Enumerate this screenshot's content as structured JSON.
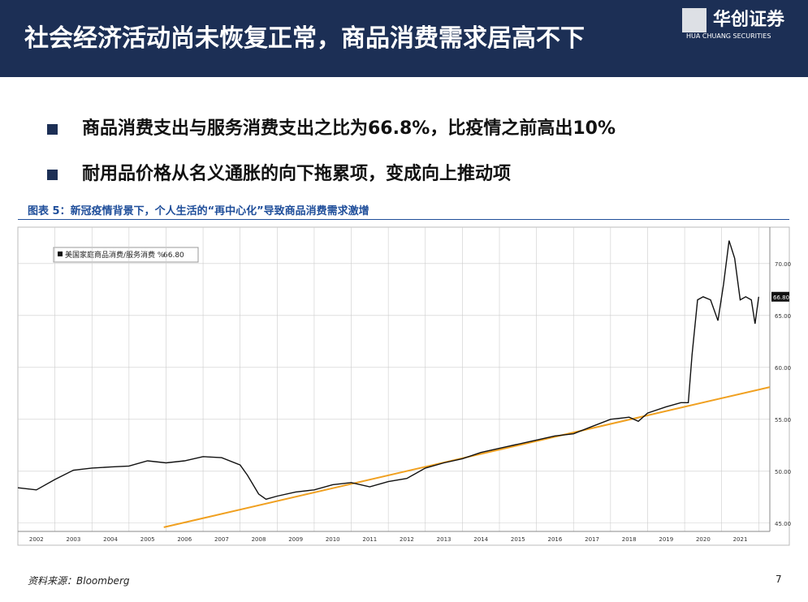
{
  "header": {
    "title": "社会经济活动尚未恢复正常，商品消费需求居高不下",
    "logo_cn": "华创证券",
    "logo_en": "HUA CHUANG SECURITIES"
  },
  "bullets": [
    "商品消费支出与服务消费支出之比为66.8%，比疫情之前高出10%",
    "耐用品价格从名义通胀的向下拖累项，变成向上推动项"
  ],
  "chart_data": {
    "type": "line",
    "title": "图表 5：新冠疫情背景下，个人生活的“再中心化”导致商品消费需求激增",
    "xlim": [
      2002.0,
      2022.3
    ],
    "ylim": [
      44.2,
      73.5
    ],
    "xticks": [
      {
        "value": 2002.5,
        "label": "2002"
      },
      {
        "value": 2003.5,
        "label": "2003"
      },
      {
        "value": 2004.5,
        "label": "2004"
      },
      {
        "value": 2005.5,
        "label": "2005"
      },
      {
        "value": 2006.5,
        "label": "2006"
      },
      {
        "value": 2007.5,
        "label": "2007"
      },
      {
        "value": 2008.5,
        "label": "2008"
      },
      {
        "value": 2009.5,
        "label": "2009"
      },
      {
        "value": 2010.5,
        "label": "2010"
      },
      {
        "value": 2011.5,
        "label": "2011"
      },
      {
        "value": 2012.5,
        "label": "2012"
      },
      {
        "value": 2013.5,
        "label": "2013"
      },
      {
        "value": 2014.5,
        "label": "2014"
      },
      {
        "value": 2015.5,
        "label": "2015"
      },
      {
        "value": 2016.5,
        "label": "2016"
      },
      {
        "value": 2017.5,
        "label": "2017"
      },
      {
        "value": 2018.5,
        "label": "2018"
      },
      {
        "value": 2019.5,
        "label": "2019"
      },
      {
        "value": 2020.5,
        "label": "2020"
      },
      {
        "value": 2021.5,
        "label": "2021"
      }
    ],
    "yticks": [
      {
        "value": 45,
        "label": "45.00"
      },
      {
        "value": 50,
        "label": "50.00"
      },
      {
        "value": 55,
        "label": "55.00"
      },
      {
        "value": 60,
        "label": "60.00"
      },
      {
        "value": 65,
        "label": "65.00"
      },
      {
        "value": 70,
        "label": "70.00"
      }
    ],
    "grid": true,
    "series": [
      {
        "name": "美国家庭商品消费/服务消费 %",
        "color": "#111111",
        "x": [
          2002.0,
          2002.5,
          2003.0,
          2003.5,
          2004.0,
          2004.5,
          2005.0,
          2005.5,
          2006.0,
          2006.5,
          2007.0,
          2007.5,
          2008.0,
          2008.2,
          2008.5,
          2008.7,
          2009.0,
          2009.5,
          2010.0,
          2010.5,
          2011.0,
          2011.5,
          2012.0,
          2012.5,
          2013.0,
          2013.5,
          2014.0,
          2014.5,
          2015.0,
          2015.5,
          2016.0,
          2016.5,
          2017.0,
          2017.5,
          2018.0,
          2018.5,
          2018.75,
          2019.0,
          2019.5,
          2019.9,
          2020.1,
          2020.2,
          2020.35,
          2020.5,
          2020.7,
          2020.9,
          2021.05,
          2021.2,
          2021.35,
          2021.5,
          2021.65,
          2021.8,
          2021.9,
          2022.0
        ],
        "values": [
          48.4,
          48.2,
          49.2,
          50.1,
          50.3,
          50.4,
          50.5,
          51.0,
          50.8,
          51.0,
          51.4,
          51.3,
          50.6,
          49.6,
          47.8,
          47.3,
          47.6,
          48.0,
          48.2,
          48.7,
          48.9,
          48.5,
          49.0,
          49.3,
          50.3,
          50.8,
          51.2,
          51.8,
          52.2,
          52.6,
          53.0,
          53.4,
          53.6,
          54.3,
          55.0,
          55.2,
          54.8,
          55.6,
          56.2,
          56.6,
          56.6,
          61.2,
          66.5,
          66.8,
          66.5,
          64.5,
          68.0,
          72.2,
          70.5,
          66.5,
          66.8,
          66.5,
          64.2,
          66.8
        ],
        "value_labels": [
          null,
          null,
          null,
          null,
          null,
          null,
          null,
          null,
          null,
          null,
          null,
          null,
          null,
          null,
          null,
          null,
          null,
          null,
          null,
          null,
          null,
          null,
          null,
          null,
          null,
          null,
          null,
          null,
          null,
          null,
          null,
          null,
          null,
          null,
          null,
          null,
          null,
          null,
          null,
          null,
          null,
          null,
          null,
          null,
          null,
          null,
          null,
          null,
          null,
          null,
          null,
          null,
          null,
          "66.80"
        ]
      },
      {
        "color": "#f0a020",
        "x": [
          2005.94,
          2022.3
        ],
        "values": [
          44.6,
          58.1
        ]
      }
    ]
  },
  "source": "资料来源：Bloomberg",
  "page": "7"
}
